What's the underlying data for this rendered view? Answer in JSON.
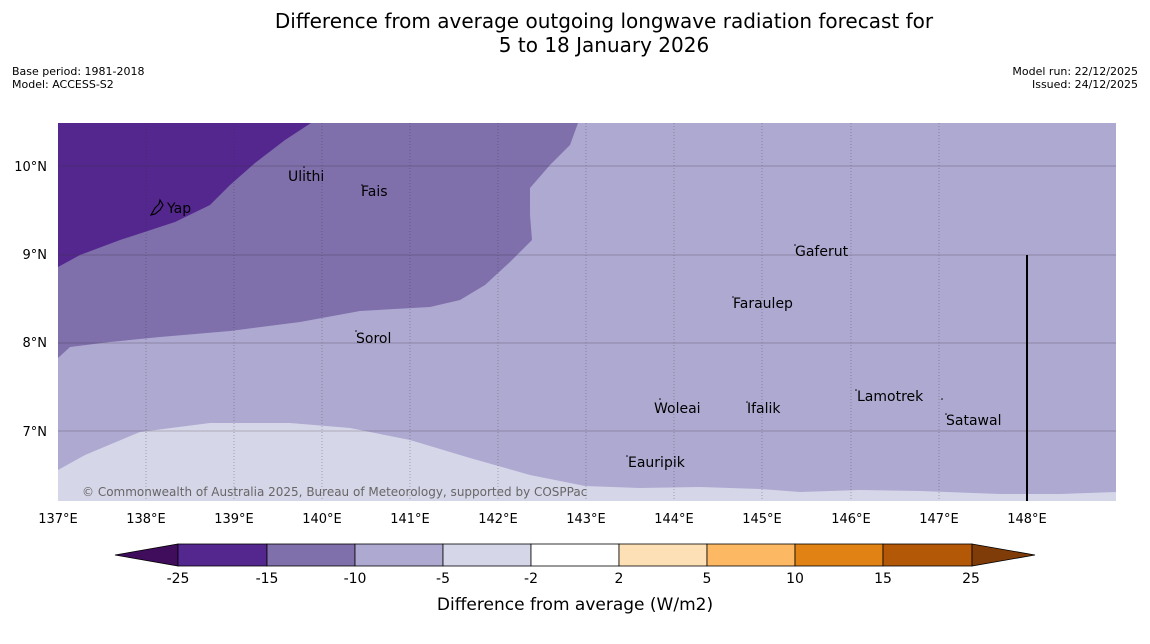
{
  "header": {
    "title_line1": "Difference from average outgoing longwave radiation forecast for",
    "title_line2": "5 to 18 January 2026",
    "base_period": "Base period: 1981-2018",
    "model": "Model: ACCESS-S2",
    "model_run": "Model run: 22/12/2025",
    "issued": "Issued: 24/12/2025"
  },
  "map": {
    "lat_labels": [
      "10°N",
      "9°N",
      "8°N",
      "7°N"
    ],
    "lon_labels": [
      "137°E",
      "138°E",
      "139°E",
      "140°E",
      "141°E",
      "142°E",
      "143°E",
      "144°E",
      "145°E",
      "146°E",
      "147°E",
      "148°E"
    ],
    "places": [
      {
        "name": "Yap"
      },
      {
        "name": "Ulithi"
      },
      {
        "name": "Fais"
      },
      {
        "name": "Gaferut"
      },
      {
        "name": "Faraulep"
      },
      {
        "name": "Sorol"
      },
      {
        "name": "Woleai"
      },
      {
        "name": "Ifalik"
      },
      {
        "name": "Lamotrek"
      },
      {
        "name": "Satawal"
      },
      {
        "name": "Eauripik"
      }
    ],
    "copyright": "© Commonwealth of Australia 2025, Bureau of Meteorology, supported by COSPPac",
    "colors": {
      "bin_neg25_neg15": "#54278f",
      "bin_neg15_neg10": "#7f6fab",
      "bin_neg10_neg5": "#aea9d1",
      "bin_neg5_neg2": "#d6d6e9"
    }
  },
  "legend": {
    "title": "Difference from average (W/m2)",
    "ticks": [
      "-25",
      "-15",
      "-10",
      "-5",
      "-2",
      "2",
      "5",
      "10",
      "15",
      "25"
    ],
    "colors": [
      "#3f0d5c",
      "#54278f",
      "#7f6fab",
      "#aea9d1",
      "#d6d6e9",
      "#ffffff",
      "#fee0b6",
      "#fdb863",
      "#e08214",
      "#b35806",
      "#7f3b08"
    ]
  }
}
